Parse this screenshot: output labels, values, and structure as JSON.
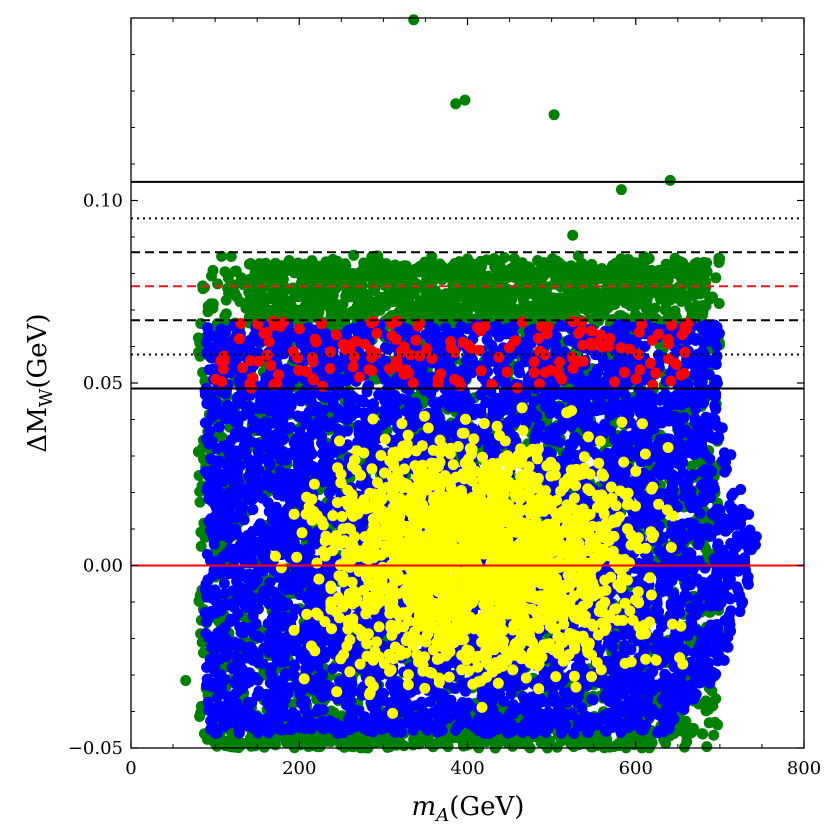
{
  "chart_data": {
    "type": "scatter",
    "xlabel_main": "m",
    "xlabel_sub": "A",
    "xlabel_unit": "(GeV)",
    "ylabel_main": "ΔM",
    "ylabel_sub": "W",
    "ylabel_unit": "(GeV)",
    "xlim": [
      0,
      800
    ],
    "ylim": [
      -0.05,
      0.15
    ],
    "xticks": [
      0,
      200,
      400,
      600,
      800
    ],
    "xtick_labels": [
      "0",
      "200",
      "400",
      "600",
      "800"
    ],
    "yticks": [
      -0.05,
      0.0,
      0.05,
      0.1
    ],
    "ytick_labels": [
      "−0.05",
      "0.00",
      "0.05",
      "0.10"
    ],
    "grid": false,
    "hlines": [
      {
        "y": 0.1051,
        "color": "#000000",
        "style": "solid"
      },
      {
        "y": 0.0951,
        "color": "#000000",
        "style": "dotted"
      },
      {
        "y": 0.0858,
        "color": "#000000",
        "style": "dashed"
      },
      {
        "y": 0.0765,
        "color": "#e41a1c",
        "style": "dashed"
      },
      {
        "y": 0.0672,
        "color": "#000000",
        "style": "dashed"
      },
      {
        "y": 0.0578,
        "color": "#000000",
        "style": "dotted"
      },
      {
        "y": 0.0485,
        "color": "#000000",
        "style": "solid"
      },
      {
        "y": 0.0,
        "color": "#ff0000",
        "style": "solid"
      }
    ],
    "series": [
      {
        "color": "#008000",
        "region": "dense band, m_A 80–700 GeV, ΔM_W −0.05 to 0.085",
        "outliers": [
          {
            "x": 336,
            "y": 0.1495
          },
          {
            "x": 386,
            "y": 0.1265
          },
          {
            "x": 397,
            "y": 0.1275
          },
          {
            "x": 503,
            "y": 0.1235
          },
          {
            "x": 583,
            "y": 0.103
          },
          {
            "x": 641,
            "y": 0.1055
          },
          {
            "x": 525,
            "y": 0.0905
          },
          {
            "x": 65,
            "y": -0.0315
          }
        ]
      },
      {
        "color": "#0000ff",
        "region": "dense band, m_A 85–750 GeV, ΔM_W −0.049 to 0.067"
      },
      {
        "color": "#ff0000",
        "region": "m_A 100–665 GeV, ΔM_W 0.048 to 0.067"
      },
      {
        "color": "#ffff00",
        "region": "m_A 90–715 GeV, ΔM_W −0.043 to 0.048"
      }
    ]
  }
}
